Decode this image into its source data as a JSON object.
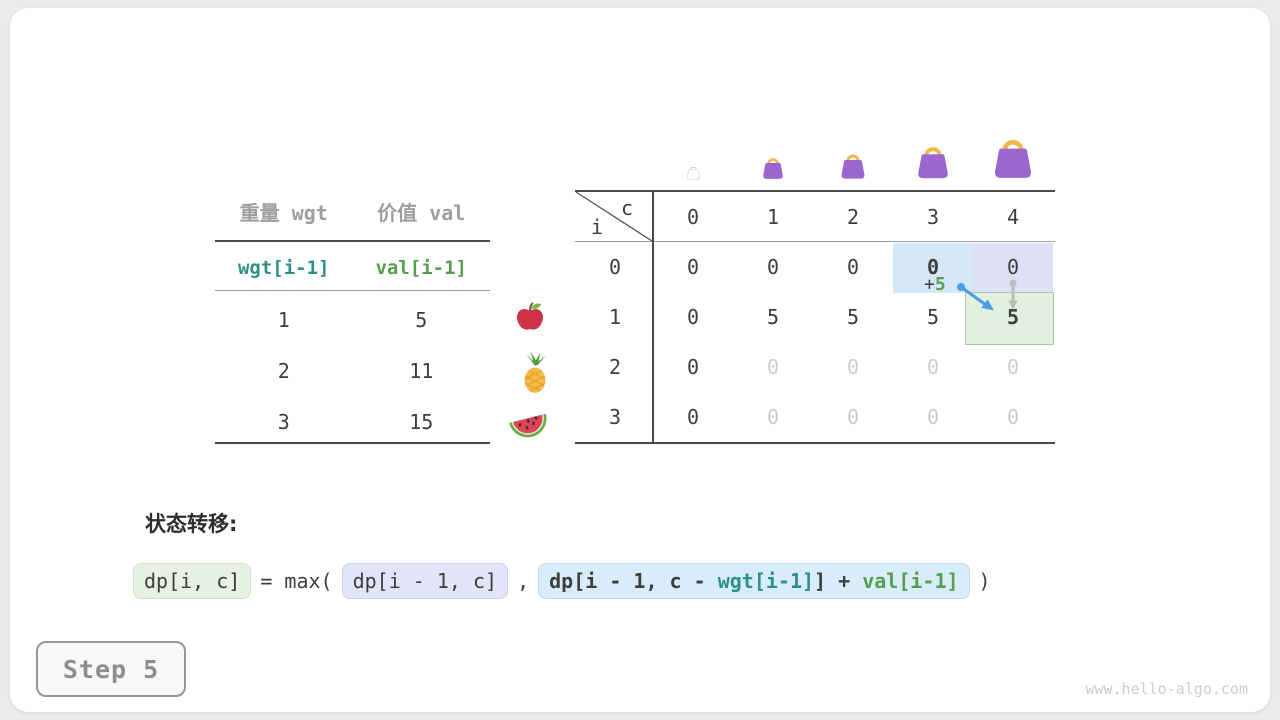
{
  "colors": {
    "text_dark": "#3d3d3d",
    "text_muted": "#cbcbcb",
    "header_gray": "#9e9e9e",
    "line_dark": "#4a4a4a",
    "line_light": "#9b9b9b",
    "teal": "#2f9088",
    "green": "#579e4e",
    "hl_blue": "#d4e8f7",
    "hl_purple": "#dee1f6",
    "hl_green_bg": "#e4f0df",
    "hl_green_border": "#a6c99f",
    "fx_green_bg": "#e7f2e2",
    "fx_green_border": "#cfe5c8",
    "fx_purple_bg": "#e2e5f8",
    "fx_purple_border": "#cdd1ef",
    "fx_blue_bg": "#d9ecfa",
    "fx_blue_border": "#bddcf4",
    "arrow_blue": "#4d9de3",
    "arrow_gray": "#bcbcbc",
    "bag_body": "#9c66cf",
    "bag_handle": "#f2b64b",
    "bag_ghost": "#c6c6c6",
    "apple_red": "#cf3148",
    "apple_leaf": "#7cb342",
    "apple_stem": "#7d4a21",
    "pineapple_body": "#f2bc45",
    "pineapple_line": "#e3a02f",
    "pineapple_leaf": "#4f9e3c",
    "melon_rind": "#69ad41",
    "melon_inner": "#eef3d6",
    "melon_flesh": "#dd4456",
    "melon_seed": "#39222e"
  },
  "item_table": {
    "col_headers": [
      "重量 wgt",
      "价值 val"
    ],
    "index_row": {
      "wgt": "wgt[i-1]",
      "val": "val[i-1]"
    },
    "rows": [
      {
        "wgt": "1",
        "val": "5",
        "fruit": "apple"
      },
      {
        "wgt": "2",
        "val": "11",
        "fruit": "pineapple"
      },
      {
        "wgt": "3",
        "val": "15",
        "fruit": "watermelon"
      }
    ]
  },
  "dp_table": {
    "corner": {
      "row_var": "i",
      "col_var": "c"
    },
    "col_headers": [
      "0",
      "1",
      "2",
      "3",
      "4"
    ],
    "row_headers": [
      "0",
      "1",
      "2",
      "3"
    ],
    "bag_icons": [
      "bag-ghost",
      "bag",
      "bag",
      "bag",
      "bag"
    ],
    "cells": [
      [
        "0",
        "0",
        "0",
        "0",
        "0"
      ],
      [
        "0",
        "5",
        "5",
        "5",
        "5"
      ],
      [
        "0",
        "0",
        "0",
        "0",
        "0"
      ],
      [
        "0",
        "0",
        "0",
        "0",
        "0"
      ]
    ],
    "cell_styles": [
      [
        "",
        "",
        "",
        "bold",
        ""
      ],
      [
        "",
        "",
        "",
        "",
        "bold"
      ],
      [
        "",
        "muted",
        "muted",
        "muted",
        "muted"
      ],
      [
        "",
        "muted",
        "muted",
        "muted",
        "muted"
      ]
    ],
    "highlights": [
      {
        "row": 0,
        "col": 3,
        "style": "blue"
      },
      {
        "row": 0,
        "col": 4,
        "style": "purple"
      },
      {
        "row": 1,
        "col": 4,
        "style": "green"
      }
    ],
    "annotation": {
      "plus": "+",
      "value": "5"
    }
  },
  "transition": {
    "label": "状态转移:",
    "lhs": "dp[i, c]",
    "eq": "= max(",
    "option1": "dp[i - 1, c]",
    "comma": ",",
    "option2": {
      "p1": "dp[i - 1, c - ",
      "wgt": "wgt[i-1]",
      "p2": "] + ",
      "val": "val[i-1]"
    },
    "close": ")"
  },
  "step_badge": {
    "label": "Step 5"
  },
  "watermark": "www.hello-algo.com"
}
